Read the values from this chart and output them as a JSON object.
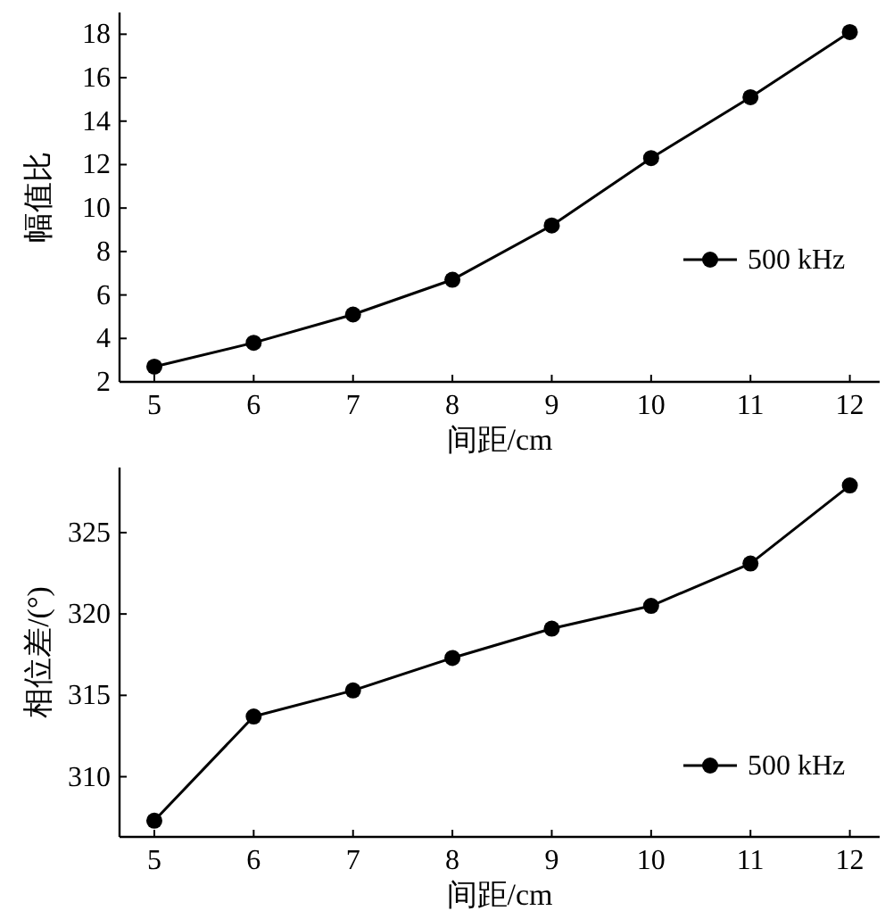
{
  "chart_data": [
    {
      "type": "line",
      "xlabel": "间距/cm",
      "ylabel": "幅值比",
      "x": [
        5,
        6,
        7,
        8,
        9,
        10,
        11,
        12
      ],
      "series": [
        {
          "name": "500 kHz",
          "color": "#000000",
          "values": [
            2.7,
            3.8,
            5.1,
            6.7,
            9.2,
            12.3,
            15.1,
            18.1
          ]
        }
      ],
      "xlim": [
        4.65,
        12.3
      ],
      "ylim": [
        2,
        19
      ],
      "xticks": [
        5,
        6,
        7,
        8,
        9,
        10,
        11,
        12
      ],
      "yticks": [
        2,
        4,
        6,
        8,
        10,
        12,
        14,
        16,
        18
      ],
      "marker": "circle",
      "legend": "right",
      "grid": false
    },
    {
      "type": "line",
      "xlabel": "间距/cm",
      "ylabel": "相位差/(°)",
      "x": [
        5,
        6,
        7,
        8,
        9,
        10,
        11,
        12
      ],
      "series": [
        {
          "name": "500 kHz",
          "color": "#000000",
          "values": [
            307.3,
            313.7,
            315.3,
            317.3,
            319.1,
            320.5,
            323.1,
            327.9
          ]
        }
      ],
      "xlim": [
        4.65,
        12.3
      ],
      "ylim": [
        306.3,
        329
      ],
      "xticks": [
        5,
        6,
        7,
        8,
        9,
        10,
        11,
        12
      ],
      "yticks": [
        310,
        315,
        320,
        325
      ],
      "marker": "circle",
      "legend": "bottom right",
      "grid": false
    }
  ]
}
